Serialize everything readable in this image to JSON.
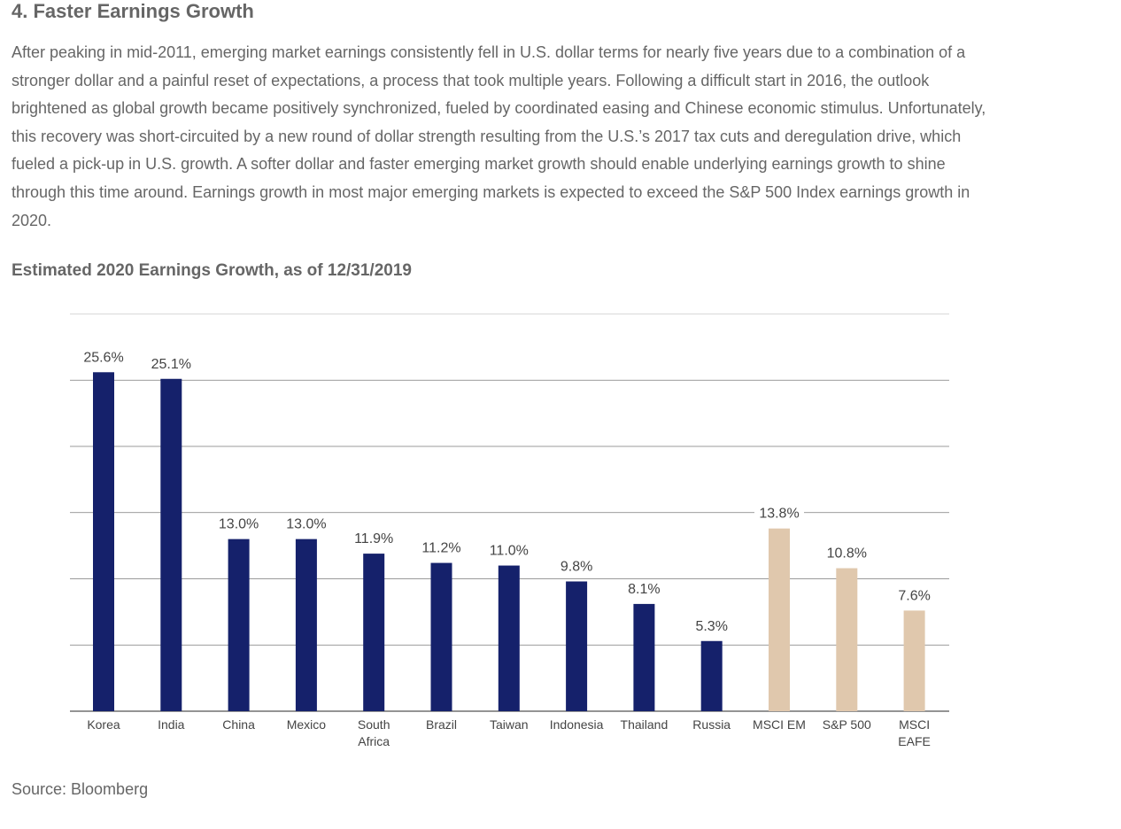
{
  "heading": "4. Faster Earnings Growth",
  "paragraph": "After peaking in mid-2011, emerging market earnings consistently fell in U.S. dollar terms for nearly five years due to a combination of a stronger dollar and a painful reset of expectations, a process that took multiple years. Following a difficult start in 2016, the outlook brightened as global growth became positively synchronized, fueled by coordinated easing and Chinese economic stimulus. Unfortunately, this recovery was short-circuited by a new round of dollar strength resulting from the U.S.’s 2017 tax cuts and deregulation drive, which fueled a pick-up in U.S. growth. A softer dollar and faster emerging market growth should enable underlying earnings growth to shine through this time around. Earnings growth in most major emerging markets is expected to exceed the S&P 500 Index earnings growth in 2020.",
  "source": "Source: Bloomberg",
  "colors": {
    "emerging": "#15216b",
    "benchmark": "#e0c8ad",
    "grid": "#7a7a7a",
    "text": "#666666",
    "label": "#444444"
  },
  "chart_data": {
    "type": "bar",
    "title": "Estimated 2020 Earnings Growth, as of 12/31/2019",
    "xlabel": "",
    "ylabel": "",
    "ylim": [
      0,
      30
    ],
    "grid": true,
    "categories": [
      [
        "Korea"
      ],
      [
        "India"
      ],
      [
        "China"
      ],
      [
        "Mexico"
      ],
      [
        "South",
        "Africa"
      ],
      [
        "Brazil"
      ],
      [
        "Taiwan"
      ],
      [
        "Indonesia"
      ],
      [
        "Thailand"
      ],
      [
        "Russia"
      ],
      [
        "MSCI EM"
      ],
      [
        "S&P 500"
      ],
      [
        "MSCI",
        "EAFE"
      ]
    ],
    "values": [
      25.6,
      25.1,
      13.0,
      13.0,
      11.9,
      11.2,
      11.0,
      9.8,
      8.1,
      5.3,
      13.8,
      10.8,
      7.6
    ],
    "data_labels": [
      "25.6%",
      "25.1%",
      "13.0%",
      "13.0%",
      "11.9%",
      "11.2%",
      "11.0%",
      "9.8%",
      "8.1%",
      "5.3%",
      "13.8%",
      "10.8%",
      "7.6%"
    ],
    "groups": [
      "emerging",
      "emerging",
      "emerging",
      "emerging",
      "emerging",
      "emerging",
      "emerging",
      "emerging",
      "emerging",
      "emerging",
      "benchmark",
      "benchmark",
      "benchmark"
    ]
  }
}
